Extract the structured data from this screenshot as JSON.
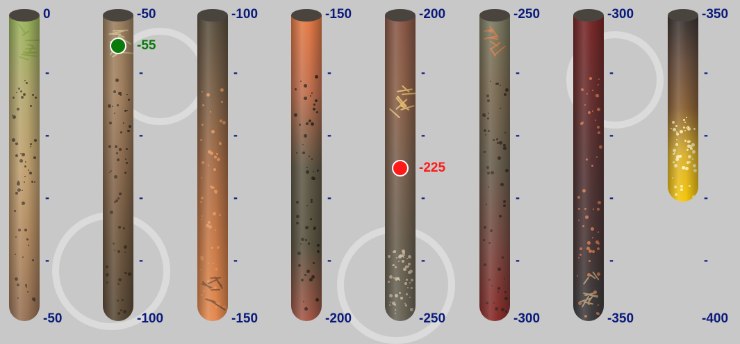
{
  "columns": [
    {
      "top_label": "0",
      "bottom_label": "-50",
      "ticks": [
        "-",
        "-",
        "-",
        "-"
      ],
      "gradient": [
        "#98b35a",
        "#b3a870",
        "#c0a070",
        "#b08860",
        "#957055"
      ],
      "speck": "#4a3a2a",
      "stroke": "#8aa04a",
      "fill": 1.0
    },
    {
      "top_label": "-50",
      "bottom_label": "-100",
      "ticks": [
        "-",
        "-",
        "-",
        "-"
      ],
      "gradient": [
        "#9a7f60",
        "#a3815f",
        "#8a6a4e",
        "#6e5840",
        "#5a4a38"
      ],
      "speck": "#3a2e22",
      "stroke": "#c8b58a",
      "fill": 1.0
    },
    {
      "top_label": "-100",
      "bottom_label": "-150",
      "ticks": [
        "-",
        "-",
        "-",
        "-"
      ],
      "gradient": [
        "#5a5040",
        "#7a6048",
        "#a86e48",
        "#c87a48",
        "#e58a50"
      ],
      "speck": "#e89a60",
      "stroke": "#8a5a3a",
      "fill": 1.0
    },
    {
      "top_label": "-150",
      "bottom_label": "-200",
      "ticks": [
        "-",
        "-",
        "-",
        "-"
      ],
      "gradient": [
        "#e57a45",
        "#c07050",
        "#605a48",
        "#5a5442",
        "#a55848"
      ],
      "speck": "#2a2418",
      "stroke": "#000000",
      "fill": 1.0
    },
    {
      "top_label": "-200",
      "bottom_label": "-250",
      "ticks": [
        "-",
        "-",
        "-",
        "-"
      ],
      "gradient": [
        "#8a5848",
        "#8a6048",
        "#7a6250",
        "#6a6050",
        "#6a6658"
      ],
      "speck": "#c8b8a0",
      "stroke": "#e0b870",
      "fill": 1.0
    },
    {
      "top_label": "-250",
      "bottom_label": "-300",
      "ticks": [
        "-",
        "-",
        "-",
        "-"
      ],
      "gradient": [
        "#7a7a62",
        "#7a6a52",
        "#6a6050",
        "#7a4c44",
        "#8a2c2a"
      ],
      "speck": "#3a2a22",
      "stroke": "#c87a48",
      "fill": 1.0
    },
    {
      "top_label": "-300",
      "bottom_label": "-350",
      "ticks": [
        "-",
        "-",
        "-",
        "-"
      ],
      "gradient": [
        "#7a2828",
        "#6a3030",
        "#553535",
        "#4a3838",
        "#3e3e3e"
      ],
      "speck": "#d87a50",
      "stroke": "#a89070",
      "fill": 1.0
    },
    {
      "top_label": "-350",
      "bottom_label": "-400",
      "ticks": [
        "-",
        "-",
        "-",
        "-"
      ],
      "gradient": [
        "#3a3634",
        "#6a5040",
        "#8a6238",
        "#d8b030",
        "#f5c50a"
      ],
      "speck": "#fff6c0",
      "stroke": "#000000",
      "fill": 0.61
    }
  ],
  "markers": [
    {
      "column": 1,
      "value": "-55",
      "color": "#0a7a0a",
      "label_color": "#0a7a0a",
      "depth": 0.1
    },
    {
      "column": 4,
      "value": "-225",
      "color": "#ff1a1a",
      "label_color": "#ff1a1a",
      "depth": 0.5
    }
  ]
}
